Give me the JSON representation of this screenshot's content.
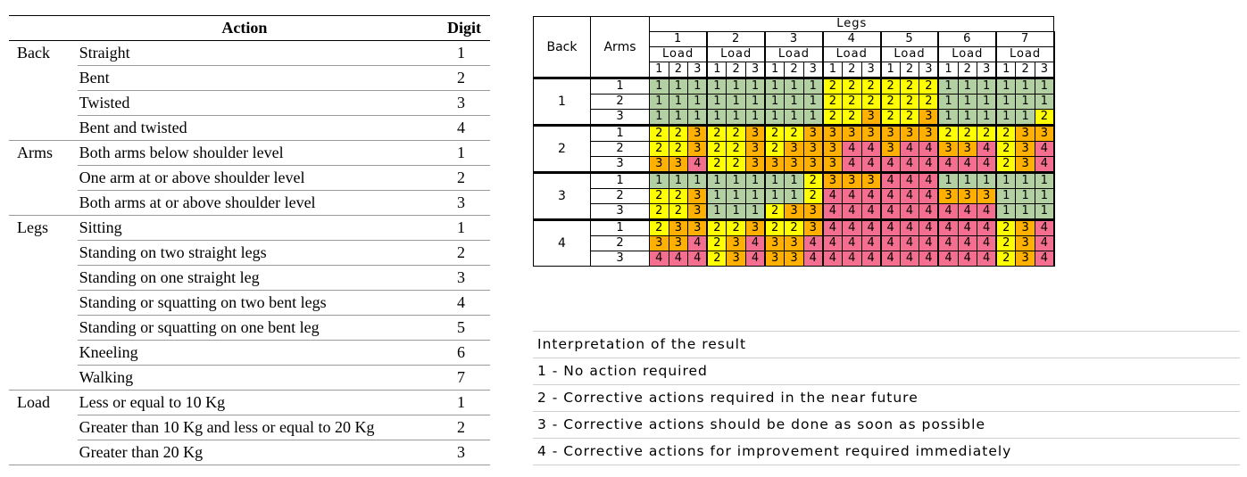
{
  "left_table": {
    "header": {
      "group": "",
      "action": "Action",
      "digit": "Digit"
    },
    "groups": [
      {
        "name": "Back",
        "rows": [
          {
            "action": "Straight",
            "digit": "1"
          },
          {
            "action": "Bent",
            "digit": "2"
          },
          {
            "action": "Twisted",
            "digit": "3"
          },
          {
            "action": "Bent and twisted",
            "digit": "4"
          }
        ]
      },
      {
        "name": "Arms",
        "rows": [
          {
            "action": "Both arms below shoulder level",
            "digit": "1"
          },
          {
            "action": "One arm at or above shoulder level",
            "digit": "2"
          },
          {
            "action": "Both arms at or above shoulder level",
            "digit": "3"
          }
        ]
      },
      {
        "name": "Legs",
        "rows": [
          {
            "action": "Sitting",
            "digit": "1"
          },
          {
            "action": "Standing on two straight legs",
            "digit": "2"
          },
          {
            "action": "Standing on one straight leg",
            "digit": "3"
          },
          {
            "action": "Standing or squatting on two bent legs",
            "digit": "4"
          },
          {
            "action": "Standing or squatting on one bent leg",
            "digit": "5"
          },
          {
            "action": "Kneeling",
            "digit": "6"
          },
          {
            "action": "Walking",
            "digit": "7"
          }
        ]
      },
      {
        "name": "Load",
        "rows": [
          {
            "action": "Less or equal to 10 Kg",
            "digit": "1"
          },
          {
            "action": "Greater than 10 Kg and less or equal to 20 Kg",
            "digit": "2"
          },
          {
            "action": "Greater than 20 Kg",
            "digit": "3"
          }
        ]
      }
    ]
  },
  "grid": {
    "back_label": "Back",
    "arms_label": "Arms",
    "legs_label": "Legs",
    "load_label": "Load",
    "legs_values": [
      "1",
      "2",
      "3",
      "4",
      "5",
      "6",
      "7"
    ],
    "load_values": [
      "1",
      "2",
      "3"
    ],
    "colors": {
      "1": "#b3d0a3",
      "2": "#ffff00",
      "3": "#ffb000",
      "4": "#f46e8f"
    },
    "rows": [
      {
        "back": "1",
        "arms": "1",
        "scores": [
          1,
          1,
          1,
          1,
          1,
          1,
          1,
          1,
          1,
          2,
          2,
          2,
          2,
          2,
          2,
          1,
          1,
          1,
          1,
          1,
          1
        ]
      },
      {
        "back": "1",
        "arms": "2",
        "scores": [
          1,
          1,
          1,
          1,
          1,
          1,
          1,
          1,
          1,
          2,
          2,
          2,
          2,
          2,
          2,
          1,
          1,
          1,
          1,
          1,
          1
        ]
      },
      {
        "back": "1",
        "arms": "3",
        "scores": [
          1,
          1,
          1,
          1,
          1,
          1,
          1,
          1,
          1,
          2,
          2,
          3,
          2,
          2,
          3,
          1,
          1,
          1,
          1,
          1,
          2
        ]
      },
      {
        "back": "2",
        "arms": "1",
        "scores": [
          2,
          2,
          3,
          2,
          2,
          3,
          2,
          2,
          3,
          3,
          3,
          3,
          3,
          3,
          3,
          2,
          2,
          2,
          2,
          3,
          3
        ]
      },
      {
        "back": "2",
        "arms": "2",
        "scores": [
          2,
          2,
          3,
          2,
          2,
          3,
          2,
          3,
          3,
          3,
          4,
          4,
          3,
          4,
          4,
          3,
          3,
          4,
          2,
          3,
          4
        ]
      },
      {
        "back": "2",
        "arms": "3",
        "scores": [
          3,
          3,
          4,
          2,
          2,
          3,
          3,
          3,
          3,
          3,
          4,
          4,
          4,
          4,
          4,
          4,
          4,
          4,
          2,
          3,
          4
        ]
      },
      {
        "back": "3",
        "arms": "1",
        "scores": [
          1,
          1,
          1,
          1,
          1,
          1,
          1,
          1,
          2,
          3,
          3,
          3,
          4,
          4,
          4,
          1,
          1,
          1,
          1,
          1,
          1
        ]
      },
      {
        "back": "3",
        "arms": "2",
        "scores": [
          2,
          2,
          3,
          1,
          1,
          1,
          1,
          1,
          2,
          4,
          4,
          4,
          4,
          4,
          4,
          3,
          3,
          3,
          1,
          1,
          1
        ]
      },
      {
        "back": "3",
        "arms": "3",
        "scores": [
          2,
          2,
          3,
          1,
          1,
          1,
          2,
          3,
          3,
          4,
          4,
          4,
          4,
          4,
          4,
          4,
          4,
          4,
          1,
          1,
          1
        ]
      },
      {
        "back": "4",
        "arms": "1",
        "scores": [
          2,
          3,
          3,
          2,
          2,
          3,
          2,
          2,
          3,
          4,
          4,
          4,
          4,
          4,
          4,
          4,
          4,
          4,
          2,
          3,
          4
        ]
      },
      {
        "back": "4",
        "arms": "2",
        "scores": [
          3,
          3,
          4,
          2,
          3,
          4,
          3,
          3,
          4,
          4,
          4,
          4,
          4,
          4,
          4,
          4,
          4,
          4,
          2,
          3,
          4
        ]
      },
      {
        "back": "4",
        "arms": "3",
        "scores": [
          4,
          4,
          4,
          2,
          3,
          4,
          3,
          3,
          4,
          4,
          4,
          4,
          4,
          4,
          4,
          4,
          4,
          4,
          2,
          3,
          4
        ]
      }
    ]
  },
  "interpretation": {
    "title": "Interpretation of the result",
    "items": [
      "1 - No action required",
      "2 - Corrective actions required in the near future",
      "3 - Corrective actions should be done as soon as possible",
      "4 - Corrective actions for improvement required immediately"
    ]
  }
}
